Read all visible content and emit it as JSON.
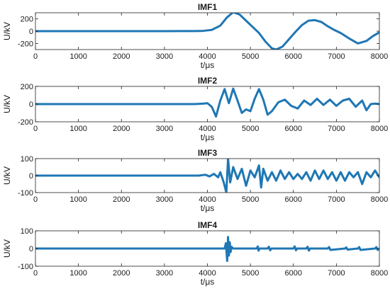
{
  "figure": {
    "background": "#ffffff",
    "line_color": "#1f77b4"
  },
  "chart_data": [
    {
      "type": "line",
      "title": "IMF1",
      "xlabel": "t/μs",
      "ylabel": "U/kV",
      "xlim": [
        0,
        8000
      ],
      "ylim": [
        -300,
        300
      ],
      "xticks": [
        0,
        1000,
        2000,
        3000,
        4000,
        5000,
        6000,
        7000,
        8000
      ],
      "yticks": [
        -200,
        0,
        200
      ],
      "grid": false,
      "series": [
        {
          "color": "#1f77b4",
          "x": [
            0,
            1000,
            2000,
            3000,
            3700,
            3900,
            4100,
            4300,
            4450,
            4600,
            4750,
            4900,
            5050,
            5200,
            5350,
            5500,
            5600,
            5750,
            5900,
            6050,
            6200,
            6350,
            6500,
            6650,
            6800,
            6950,
            7100,
            7300,
            7500,
            7700,
            7850,
            8000
          ],
          "y": [
            0,
            0,
            0,
            0,
            2,
            5,
            20,
            90,
            220,
            310,
            270,
            170,
            70,
            -30,
            -170,
            -280,
            -300,
            -250,
            -130,
            -10,
            100,
            170,
            180,
            150,
            80,
            20,
            -30,
            -120,
            -200,
            -160,
            -80,
            -20
          ]
        }
      ]
    },
    {
      "type": "line",
      "title": "IMF2",
      "xlabel": "t/μs",
      "ylabel": "U/kV",
      "xlim": [
        0,
        8000
      ],
      "ylim": [
        -200,
        200
      ],
      "xticks": [
        0,
        1000,
        2000,
        3000,
        4000,
        5000,
        6000,
        7000,
        8000
      ],
      "yticks": [
        -200,
        0,
        200
      ],
      "grid": false,
      "series": [
        {
          "color": "#1f77b4",
          "x": [
            0,
            1000,
            2000,
            3000,
            3700,
            3900,
            4000,
            4100,
            4200,
            4300,
            4400,
            4500,
            4600,
            4700,
            4800,
            4900,
            5000,
            5100,
            5200,
            5300,
            5400,
            5500,
            5650,
            5800,
            5950,
            6100,
            6250,
            6400,
            6550,
            6700,
            6850,
            7000,
            7150,
            7300,
            7450,
            7600,
            7700,
            7800,
            7900,
            8000
          ],
          "y": [
            0,
            0,
            0,
            0,
            0,
            5,
            10,
            -30,
            -140,
            40,
            170,
            10,
            175,
            40,
            -100,
            -60,
            -80,
            60,
            170,
            50,
            -120,
            -80,
            20,
            50,
            -20,
            -50,
            40,
            -10,
            60,
            -10,
            50,
            -20,
            40,
            60,
            -30,
            40,
            -70,
            0,
            5,
            0
          ]
        }
      ]
    },
    {
      "type": "line",
      "title": "IMF3",
      "xlabel": "t/μs",
      "ylabel": "U/kV",
      "xlim": [
        0,
        8000
      ],
      "ylim": [
        -100,
        100
      ],
      "xticks": [
        0,
        1000,
        2000,
        3000,
        4000,
        5000,
        6000,
        7000,
        8000
      ],
      "yticks": [
        -100,
        0,
        100
      ],
      "grid": false,
      "series": [
        {
          "color": "#1f77b4",
          "x": [
            0,
            1000,
            2000,
            3000,
            3800,
            3950,
            4050,
            4150,
            4250,
            4300,
            4380,
            4440,
            4480,
            4530,
            4600,
            4700,
            4800,
            4900,
            5000,
            5100,
            5200,
            5250,
            5300,
            5400,
            5500,
            5600,
            5700,
            5800,
            5900,
            6000,
            6100,
            6200,
            6300,
            6400,
            6500,
            6600,
            6700,
            6800,
            6900,
            7000,
            7100,
            7200,
            7300,
            7400,
            7500,
            7600,
            7700,
            7800,
            7900,
            8000
          ],
          "y": [
            0,
            0,
            0,
            0,
            0,
            5,
            -5,
            10,
            -10,
            20,
            -40,
            -100,
            100,
            -40,
            50,
            -20,
            40,
            -60,
            30,
            -10,
            60,
            -70,
            40,
            -30,
            20,
            -30,
            30,
            -20,
            20,
            -20,
            10,
            -20,
            20,
            -30,
            30,
            -20,
            30,
            -20,
            20,
            -30,
            20,
            -30,
            20,
            -10,
            20,
            -50,
            20,
            -10,
            30,
            -10
          ]
        }
      ]
    },
    {
      "type": "line",
      "title": "IMF4",
      "xlabel": "t/μs",
      "ylabel": "U/kV",
      "xlim": [
        0,
        8000
      ],
      "ylim": [
        -100,
        100
      ],
      "xticks": [
        0,
        1000,
        2000,
        3000,
        4000,
        5000,
        6000,
        7000,
        8000
      ],
      "yticks": [
        -100,
        0,
        100
      ],
      "grid": false,
      "series": [
        {
          "color": "#1f77b4",
          "x": [
            0,
            1000,
            2000,
            3000,
            4000,
            4400,
            4430,
            4460,
            4480,
            4500,
            4520,
            4540,
            4560,
            4600,
            5000,
            5150,
            5170,
            5190,
            5210,
            5400,
            5430,
            5460,
            5490,
            6000,
            6030,
            6060,
            6090,
            6300,
            6330,
            6360,
            6390,
            6800,
            6830,
            6860,
            7200,
            7230,
            7260,
            7500,
            7530,
            7560,
            7900,
            7930,
            7960,
            8000
          ],
          "y": [
            0,
            0,
            0,
            0,
            0,
            0,
            30,
            -70,
            65,
            -40,
            35,
            -20,
            10,
            0,
            0,
            0,
            12,
            -12,
            0,
            0,
            10,
            -10,
            0,
            0,
            12,
            -10,
            0,
            0,
            10,
            -12,
            0,
            0,
            8,
            -8,
            0,
            6,
            -6,
            0,
            8,
            -8,
            0,
            8,
            -8,
            0
          ]
        }
      ]
    }
  ]
}
